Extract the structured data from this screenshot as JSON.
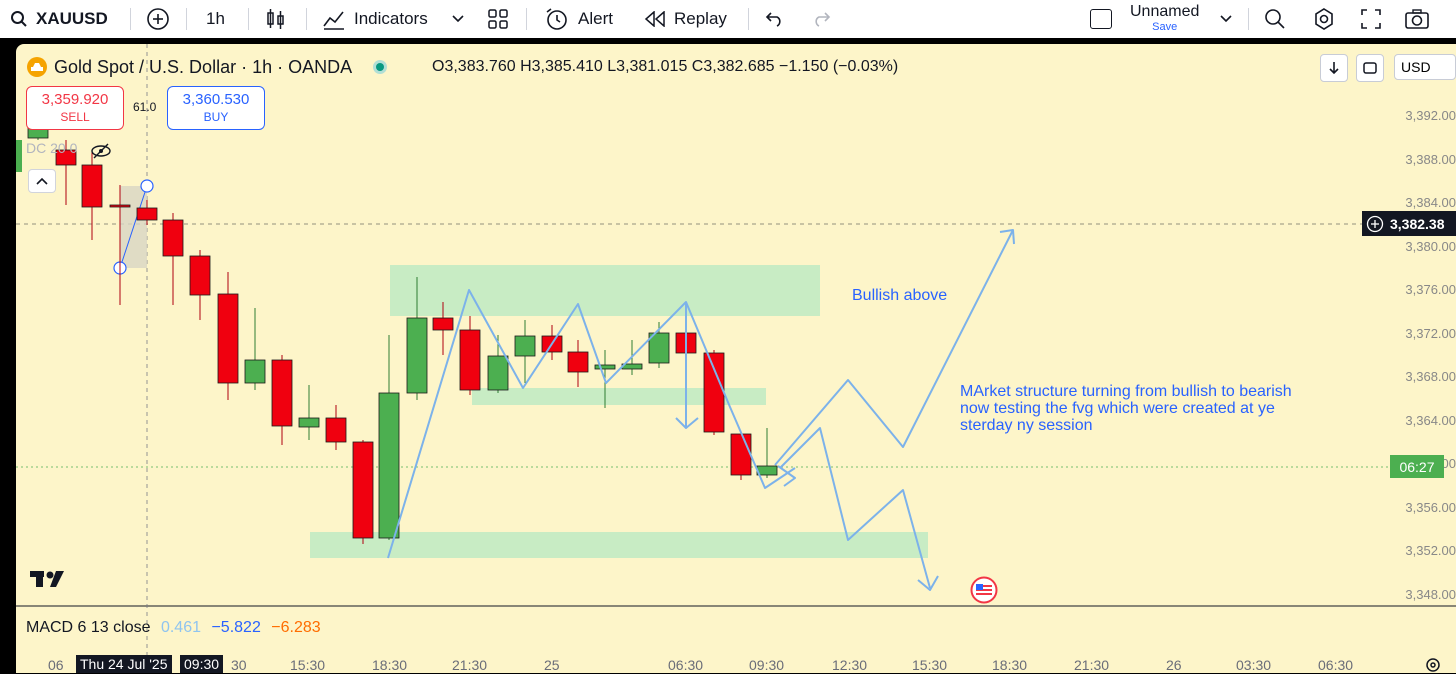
{
  "toolbar": {
    "symbol": "XAUUSD",
    "interval": "1h",
    "indicators_label": "Indicators",
    "alert_label": "Alert",
    "replay_label": "Replay",
    "layout_name": "Unnamed",
    "save_label": "Save"
  },
  "legend": {
    "title": "Gold Spot / U.S. Dollar · 1h · OANDA",
    "open": "O3,383.760",
    "high": "H3,385.410",
    "low": "L3,381.015",
    "close": "C3,382.685",
    "change": "−1.150 (−0.03%)",
    "spread": "61.0",
    "dc_label": "DC 20 0"
  },
  "trade": {
    "sell_price": "3,359.920",
    "sell_label": "SELL",
    "buy_price": "3,360.530",
    "buy_label": "BUY"
  },
  "scale": {
    "currency": "USD",
    "price_ticks": [
      "3,392.00",
      "3,388.00",
      "3,384.00",
      "3,380.00",
      "3,376.00",
      "3,372.00",
      "3,368.00",
      "3,364.00",
      "3,360.00",
      "3,356.00",
      "3,352.00",
      "3,348.00"
    ],
    "current_price": "3,382.38",
    "countdown": "06:27"
  },
  "time_axis": {
    "labels": [
      "06",
      "Thu 24 Jul '25",
      "09:30",
      "30",
      "15:30",
      "18:30",
      "21:30",
      "25",
      "06:30",
      "09:30",
      "12:30",
      "15:30",
      "18:30",
      "21:30",
      "26",
      "03:30",
      "06:30"
    ]
  },
  "macd": {
    "label": "MACD 6 13 close",
    "v1": "0.461",
    "v2": "−5.822",
    "v3": "−6.283"
  },
  "annotations": {
    "bullish": "Bullish above",
    "structure_line1": "MArket structure turning from bullish to bearish",
    "structure_line2": "now testing the fvg which were created at ye",
    "structure_line3": "sterday ny session"
  },
  "colors": {
    "bull": "#4caf50",
    "bear": "#f0000f",
    "zone": "#c8ecc4",
    "accent": "#2962ff",
    "chart_bg": "#fdf5c9"
  }
}
